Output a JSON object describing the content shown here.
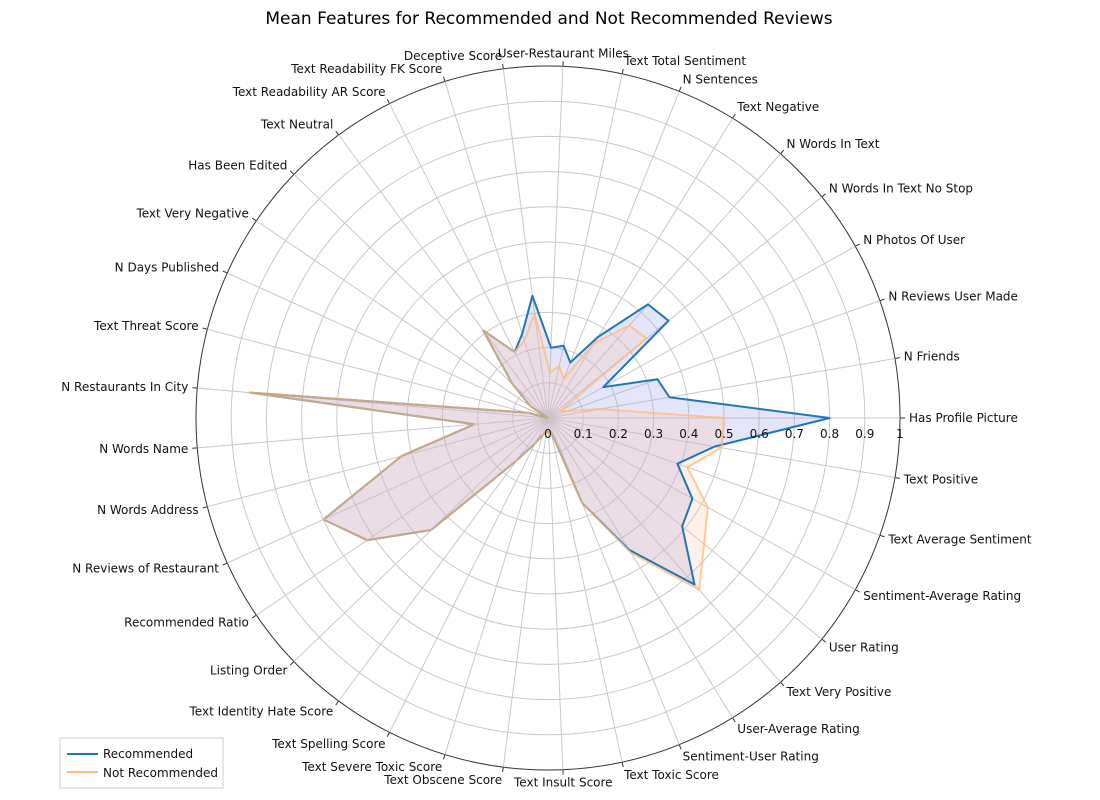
{
  "chart_data": {
    "type": "radar",
    "title": "Mean Features for Recommended and Not Recommended Reviews",
    "rlim": [
      0,
      1
    ],
    "rticks": [
      "0",
      "0.1",
      "0.2",
      "0.3",
      "0.4",
      "0.5",
      "0.6",
      "0.7",
      "0.8",
      "0.9",
      "1"
    ],
    "grid": true,
    "legend_position": "bottom-left",
    "categories": [
      "Has Profile Picture",
      "N Friends",
      "N Reviews User Made",
      "N Photos Of User",
      "N Words In Text No Stop",
      "N Words In Text",
      "Text Negative",
      "N Sentences",
      "Text Total Sentiment",
      "User-Restaurant Miles",
      "Deceptive Score",
      "Text Readability FK Score",
      "Text Readability AR Score",
      "Text Neutral",
      "Has Been Edited",
      "Text Very Negative",
      "N Days Published",
      "Text Threat Score",
      "N Restaurants In City",
      "N Words Name",
      "N Words Address",
      "N Reviews of Restaurant",
      "Recommended Ratio",
      "Listing Order",
      "Text Identity Hate Score",
      "Text Spelling Score",
      "Text Severe Toxic Score",
      "Text Obscene Score",
      "Text Insult Score",
      "Text Toxic Score",
      "Sentiment-User Rating",
      "User-Average Rating",
      "Text Very Positive",
      "User Rating",
      "Sentiment-Average Rating",
      "Text Average Sentiment",
      "Text Positive"
    ],
    "series": [
      {
        "name": "Recommended",
        "color": "#1f77b4",
        "values": [
          0.8,
          0.35,
          0.33,
          0.18,
          0.44,
          0.43,
          0.27,
          0.17,
          0.21,
          0.2,
          0.35,
          0.25,
          0.21,
          0.31,
          0.14,
          0.06,
          0.0,
          0.06,
          0.85,
          0.21,
          0.43,
          0.7,
          0.62,
          0.46,
          0.15,
          0.08,
          0.05,
          0.04,
          0.04,
          0.04,
          0.26,
          0.44,
          0.63,
          0.49,
          0.47,
          0.39,
          0.48
        ]
      },
      {
        "name": "Not Recommended",
        "color": "#ffbb78",
        "values": [
          0.5,
          0.15,
          0.06,
          0.04,
          0.36,
          0.35,
          0.25,
          0.12,
          0.15,
          0.13,
          0.3,
          0.23,
          0.21,
          0.31,
          0.14,
          0.06,
          0.0,
          0.06,
          0.85,
          0.21,
          0.43,
          0.7,
          0.62,
          0.46,
          0.15,
          0.08,
          0.05,
          0.04,
          0.04,
          0.04,
          0.26,
          0.45,
          0.65,
          0.57,
          0.52,
          0.42,
          0.5
        ]
      }
    ]
  }
}
